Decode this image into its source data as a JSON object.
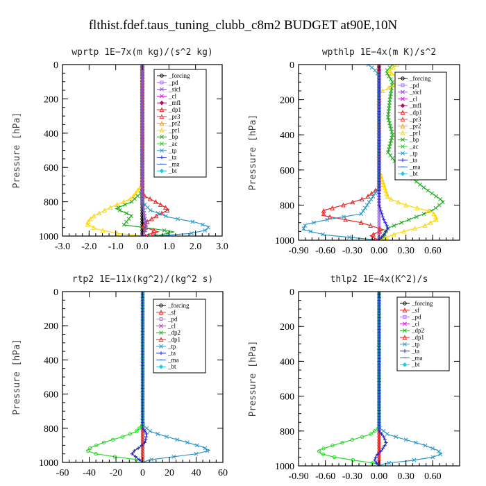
{
  "figure_title": "flthist.fdef.taus_tuning_clubb_c8m2  BUDGET at90E,10N",
  "chart_data": [
    {
      "type": "line",
      "title": "wprtp   1E−7x(m kg)/(s^2 kg)",
      "ylabel": "Pressure [hPa]",
      "xlim": [
        -3.0,
        3.0
      ],
      "ylim": [
        0,
        1000
      ],
      "y_reversed": true,
      "xticks": [
        -3.0,
        -2.0,
        -1.0,
        0.0,
        1.0,
        2.0,
        3.0
      ],
      "xtick_labels": [
        "-3.0",
        "-2.0",
        "-1.0",
        "0.0",
        "1.0",
        "2.0",
        "3.0"
      ],
      "yticks": [
        0,
        200,
        400,
        600,
        800,
        1000
      ],
      "ytick_labels": [
        "0",
        "200",
        "400",
        "600",
        "800",
        "1000"
      ],
      "legend": [
        "_forcing",
        "_pd",
        "_sicl",
        "_cl",
        "_mfl",
        "_dp1",
        "_pr3",
        "_pr2",
        "_pr1",
        "_bp",
        "_ac",
        "_tp",
        "_ta",
        "_ma",
        "_bt"
      ],
      "series": [
        {
          "name": "_forcing",
          "color": "#000000",
          "marker": "circle",
          "x": [
            0,
            0,
            0,
            0,
            0,
            0
          ],
          "y": [
            0,
            200,
            400,
            600,
            800,
            1000
          ]
        },
        {
          "name": "_pr2",
          "color": "#ffd700",
          "marker": "triangle",
          "x": [
            0,
            0,
            -0.4,
            -1.3,
            -1.9,
            -2.1,
            -1.7,
            -0.9,
            0
          ],
          "y": [
            0,
            700,
            780,
            840,
            890,
            930,
            960,
            985,
            1000
          ]
        },
        {
          "name": "_ac",
          "color": "#22aa22",
          "marker": "x",
          "x": [
            0,
            0,
            -0.4,
            -1.0,
            -0.4,
            -0.7,
            0.3,
            1.2,
            0.5
          ],
          "y": [
            0,
            740,
            800,
            840,
            880,
            935,
            955,
            975,
            1000
          ]
        },
        {
          "name": "_dp1",
          "color": "#ee2222",
          "marker": "triangle",
          "x": [
            0,
            0,
            0.5,
            1.0,
            0.5,
            0.2,
            0,
            0.6,
            0
          ],
          "y": [
            0,
            760,
            800,
            845,
            885,
            915,
            945,
            975,
            1000
          ]
        },
        {
          "name": "_tp",
          "color": "#2a96c8",
          "marker": "x",
          "x": [
            0,
            0,
            0.3,
            1.0,
            2.0,
            2.5,
            2.4,
            1.8,
            0.5
          ],
          "y": [
            0,
            800,
            850,
            890,
            920,
            945,
            965,
            985,
            1000
          ]
        },
        {
          "name": "_sicl",
          "color": "#8855cc",
          "marker": "x",
          "x": [
            0,
            0,
            0.1,
            0.15,
            0.1,
            0
          ],
          "y": [
            0,
            800,
            900,
            940,
            975,
            1000
          ]
        }
      ]
    },
    {
      "type": "line",
      "title": "wpthlp   1E−4x(m K)/s^2",
      "ylabel": "Pressure [hPa]",
      "xlim": [
        -0.9,
        0.9
      ],
      "ylim": [
        0,
        1000
      ],
      "y_reversed": true,
      "xticks": [
        -0.9,
        -0.6,
        -0.3,
        0.0,
        0.3,
        0.6
      ],
      "xtick_labels": [
        "-0.90",
        "-0.60",
        "-0.30",
        "0.00",
        "0.30",
        "0.60"
      ],
      "yticks": [
        0,
        200,
        400,
        600,
        800,
        1000
      ],
      "ytick_labels": [
        "0",
        "200",
        "400",
        "600",
        "800",
        "1000"
      ],
      "legend": [
        "_forcing",
        "_pd",
        "_sicl",
        "_cl",
        "_mfl",
        "_dp1",
        "_pr3",
        "_pr2",
        "_pr1",
        "_bp",
        "_ac",
        "_tp",
        "_ta",
        "_ma",
        "_bt"
      ],
      "series": [
        {
          "name": "_forcing",
          "color": "#aa77ee",
          "marker": "circle",
          "x": [
            0,
            0,
            0,
            0,
            0,
            0
          ],
          "y": [
            0,
            200,
            400,
            600,
            800,
            1000
          ]
        },
        {
          "name": "_ac",
          "color": "#22aa22",
          "marker": "x",
          "x": [
            0.15,
            0.08,
            0.15,
            0.12,
            0.1,
            0.15,
            0.1,
            0.25,
            0.5,
            0.72,
            0.6,
            0.4,
            0.1,
            0.05
          ],
          "y": [
            0,
            40,
            100,
            200,
            300,
            400,
            500,
            600,
            700,
            780,
            830,
            870,
            930,
            980
          ]
        },
        {
          "name": "_pr2",
          "color": "#ffd700",
          "marker": "triangle",
          "x": [
            0.2,
            0.1,
            0.25,
            0.2,
            0,
            0,
            0.1,
            0.3,
            0.6,
            0.65,
            0.5,
            0.2,
            0
          ],
          "y": [
            0,
            40,
            80,
            110,
            160,
            600,
            760,
            800,
            840,
            880,
            920,
            960,
            1000
          ]
        },
        {
          "name": "_dp1",
          "color": "#ee2222",
          "marker": "triangle",
          "x": [
            0,
            0,
            -0.15,
            -0.4,
            -0.62,
            -0.62,
            -0.2,
            0.05,
            -0.1,
            0
          ],
          "y": [
            0,
            700,
            760,
            800,
            830,
            860,
            900,
            940,
            975,
            1000
          ]
        },
        {
          "name": "_tp",
          "color": "#2a96c8",
          "marker": "x",
          "x": [
            -0.12,
            -0.05,
            0,
            0,
            -0.2,
            -0.55,
            -0.82,
            -0.85,
            -0.6,
            0
          ],
          "y": [
            0,
            30,
            60,
            700,
            850,
            880,
            910,
            940,
            970,
            1000
          ]
        },
        {
          "name": "_ta",
          "color": "#2222cc",
          "marker": "plus",
          "x": [
            0,
            0,
            0.05,
            0.1,
            0.05,
            0
          ],
          "y": [
            0,
            800,
            880,
            930,
            970,
            1000
          ]
        }
      ]
    },
    {
      "type": "line",
      "title": "rtp2   1E−11x(kg^2)/(kg^2 s)",
      "ylabel": "Pressure [hPa]",
      "xlim": [
        -60,
        60
      ],
      "ylim": [
        0,
        1000
      ],
      "y_reversed": true,
      "xticks": [
        -60,
        -40,
        -20,
        0,
        20,
        40,
        60
      ],
      "xtick_labels": [
        "-60",
        "-40",
        "-20",
        "0",
        "20",
        "40",
        "60"
      ],
      "yticks": [
        0,
        200,
        400,
        600,
        800,
        1000
      ],
      "ytick_labels": [
        "0",
        "200",
        "400",
        "600",
        "800",
        "1000"
      ],
      "legend": [
        "_forcing",
        "_sf",
        "_pd",
        "_cl",
        "_dp2",
        "_dp1",
        "_tp",
        "_ta",
        "_ma",
        "_bt"
      ],
      "series": [
        {
          "name": "_forcing",
          "color": "#ee2222",
          "marker": "circle",
          "x": [
            0,
            0,
            0,
            0,
            0,
            0
          ],
          "y": [
            0,
            200,
            400,
            600,
            800,
            1000
          ]
        },
        {
          "name": "_dp1",
          "color": "#22dd22",
          "marker": "circle",
          "x": [
            0,
            0,
            -5,
            -15,
            -28,
            -38,
            -42,
            -35,
            -18,
            -3,
            0
          ],
          "y": [
            0,
            780,
            820,
            850,
            880,
            910,
            930,
            950,
            970,
            985,
            1000
          ]
        },
        {
          "name": "_tp",
          "color": "#2a96c8",
          "marker": "x",
          "x": [
            0,
            0,
            6,
            18,
            32,
            45,
            50,
            40,
            20,
            5,
            0
          ],
          "y": [
            0,
            780,
            820,
            850,
            880,
            910,
            930,
            950,
            970,
            985,
            1000
          ]
        },
        {
          "name": "_ta",
          "color": "#2222cc",
          "marker": "plus",
          "x": [
            0,
            0,
            3,
            2,
            -2,
            -6,
            -8,
            -4,
            0
          ],
          "y": [
            0,
            800,
            830,
            880,
            910,
            930,
            950,
            975,
            1000
          ]
        }
      ]
    },
    {
      "type": "line",
      "title": "thlp2   1E−4x(K^2)/s",
      "ylabel": "Pressure [hPa]",
      "xlim": [
        -0.9,
        0.9
      ],
      "ylim": [
        0,
        1000
      ],
      "y_reversed": true,
      "xticks": [
        -0.9,
        -0.6,
        -0.3,
        0.0,
        0.3,
        0.6
      ],
      "xtick_labels": [
        "-0.90",
        "-0.60",
        "-0.30",
        "0.00",
        "0.30",
        "0.60"
      ],
      "yticks": [
        0,
        200,
        400,
        600,
        800,
        1000
      ],
      "ytick_labels": [
        "0",
        "200",
        "400",
        "600",
        "800",
        "1000"
      ],
      "legend": [
        "_forcing",
        "_sf",
        "_pd",
        "_cl",
        "_dp2",
        "_dp1",
        "_tp",
        "_ta",
        "_ma",
        "_bt"
      ],
      "series": [
        {
          "name": "_forcing",
          "color": "#ee2222",
          "marker": "circle",
          "x": [
            0,
            0,
            0,
            0,
            0,
            0
          ],
          "y": [
            0,
            200,
            400,
            600,
            800,
            1000
          ]
        },
        {
          "name": "_dp1",
          "color": "#22dd22",
          "marker": "circle",
          "x": [
            0,
            0,
            -0.1,
            -0.3,
            -0.5,
            -0.68,
            -0.65,
            -0.5,
            -0.25,
            -0.05,
            0
          ],
          "y": [
            0,
            780,
            820,
            850,
            880,
            910,
            930,
            950,
            970,
            985,
            1000
          ]
        },
        {
          "name": "_tp",
          "color": "#2a96c8",
          "marker": "x",
          "x": [
            0,
            0,
            0.1,
            0.3,
            0.5,
            0.65,
            0.7,
            0.6,
            0.35,
            0.08,
            0
          ],
          "y": [
            0,
            780,
            820,
            850,
            880,
            910,
            930,
            950,
            970,
            985,
            1000
          ]
        },
        {
          "name": "_ta",
          "color": "#2222cc",
          "marker": "plus",
          "x": [
            0,
            0,
            0.05,
            0.08,
            0.03,
            -0.03,
            -0.05,
            0
          ],
          "y": [
            0,
            800,
            830,
            870,
            910,
            940,
            970,
            1000
          ]
        }
      ]
    }
  ]
}
